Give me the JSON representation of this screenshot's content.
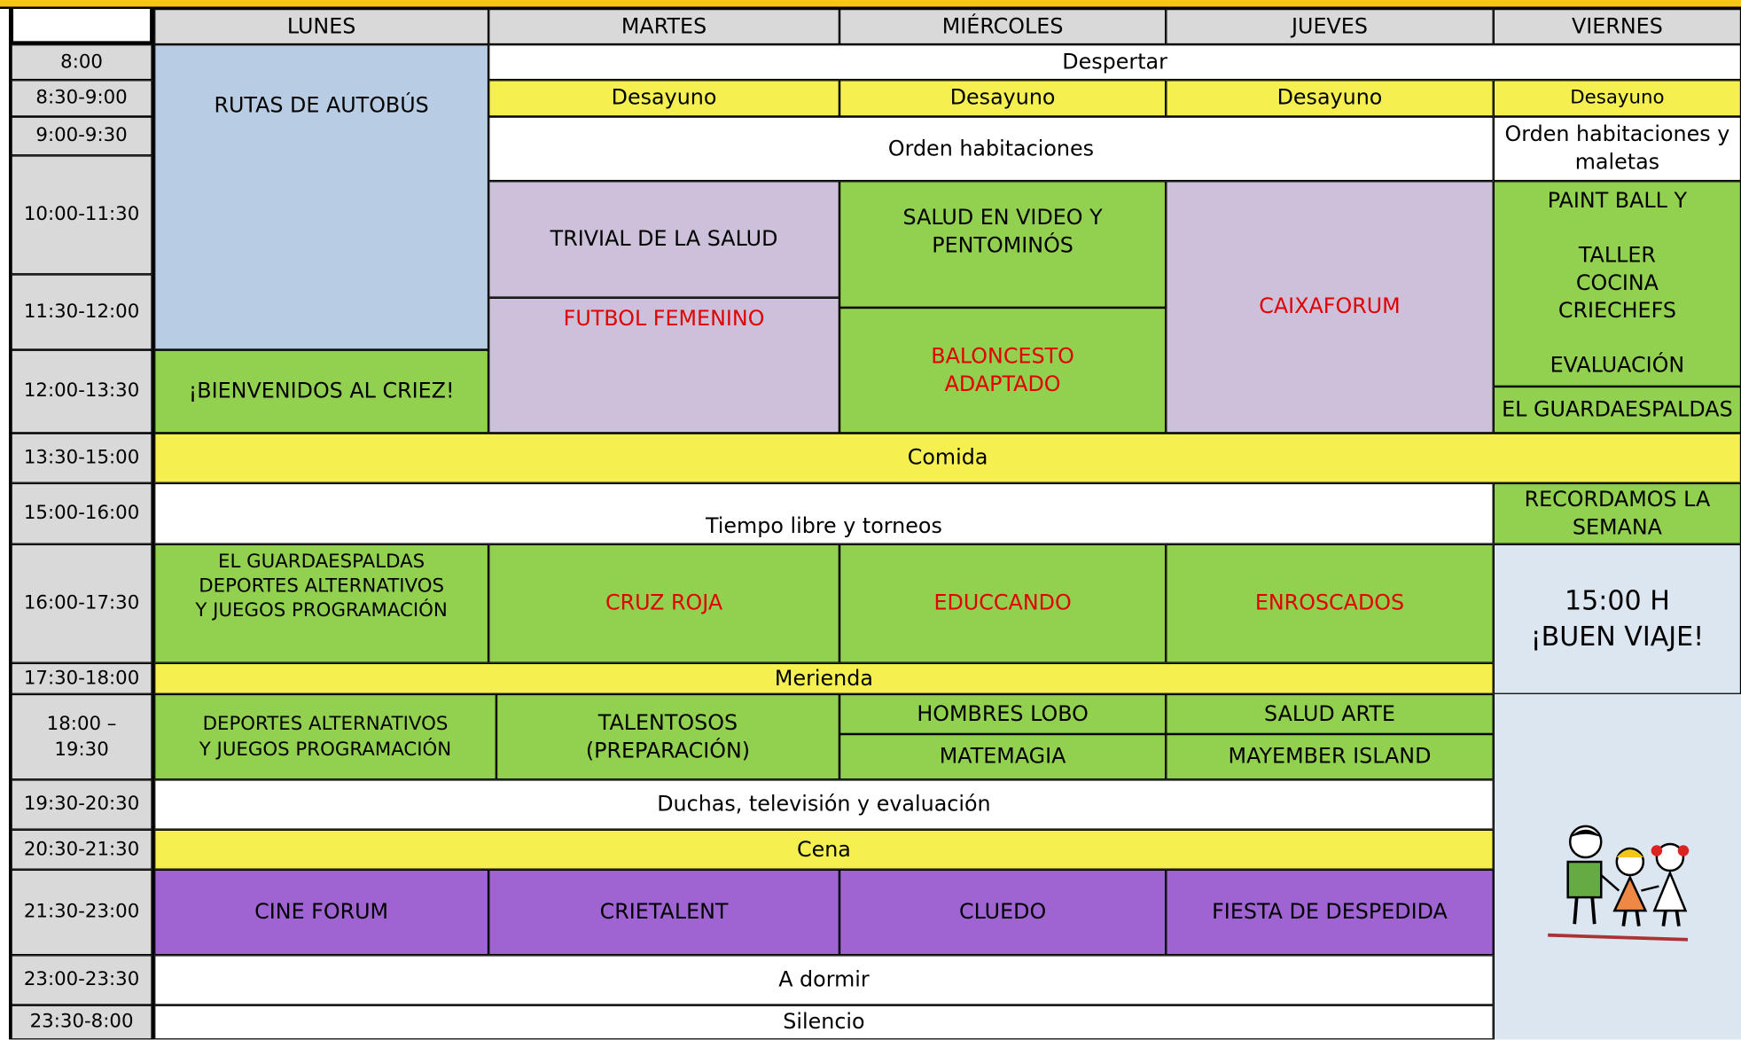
{
  "header": {
    "days": [
      "LUNES",
      "MARTES",
      "MIÉRCOLES",
      "JUEVES",
      "VIERNES"
    ]
  },
  "times": [
    "8:00",
    "8:30-9:00",
    "9:00-9:30",
    "10:00-11:30",
    "11:30-12:00",
    "12:00-13:30",
    "13:30-15:00",
    "15:00-16:00",
    "16:00-17:30",
    "17:30-18:00",
    "18:00 –\n19:30",
    "19:30-20:30",
    "20:30-21:30",
    "21:30-23:00",
    "23:00-23:30",
    "23:30-8:00"
  ],
  "activities": [
    "RUTAS DE AUTOBÚS",
    "Despertar",
    "Desayuno",
    "Desayuno",
    "Desayuno",
    "Desayuno",
    "Orden habitaciones",
    "Orden habitaciones y\nmaletas",
    "TRIVIAL DE LA SALUD",
    "FUTBOL FEMENINO",
    "SALUD EN VIDEO Y\nPENTOMINÓS",
    "BALONCESTO\nADAPTADO",
    "CAIXAFORUM",
    "PAINT BALL Y\n\nTALLER\nCOCINA\nCRIECHEFS\n\nEVALUACIÓN",
    "EL GUARDAESPALDAS",
    "¡BIENVENIDOS AL CRIEZ!",
    "Comida",
    "Tiempo libre y torneos",
    "RECORDAMOS LA\nSEMANA",
    "EL GUARDAESPALDAS\nDEPORTES ALTERNATIVOS\nY JUEGOS PROGRAMACIÓN",
    "CRUZ ROJA",
    "EDUCCANDO",
    "ENROSCADOS",
    "15:00 H\n¡BUEN VIAJE!",
    "Merienda",
    "DEPORTES ALTERNATIVOS\nY JUEGOS PROGRAMACIÓN",
    "TALENTOSOS\n(PREPARACIÓN)",
    "HOMBRES LOBO",
    "MATEMAGIA",
    "SALUD ARTE",
    "MAYEMBER ISLAND",
    "Duchas, televisión y evaluación",
    "Cena",
    "CINE FORUM",
    "CRIETALENT",
    "CLUEDO",
    "FIESTA DE DESPEDIDA",
    "A dormir",
    "Silencio"
  ]
}
